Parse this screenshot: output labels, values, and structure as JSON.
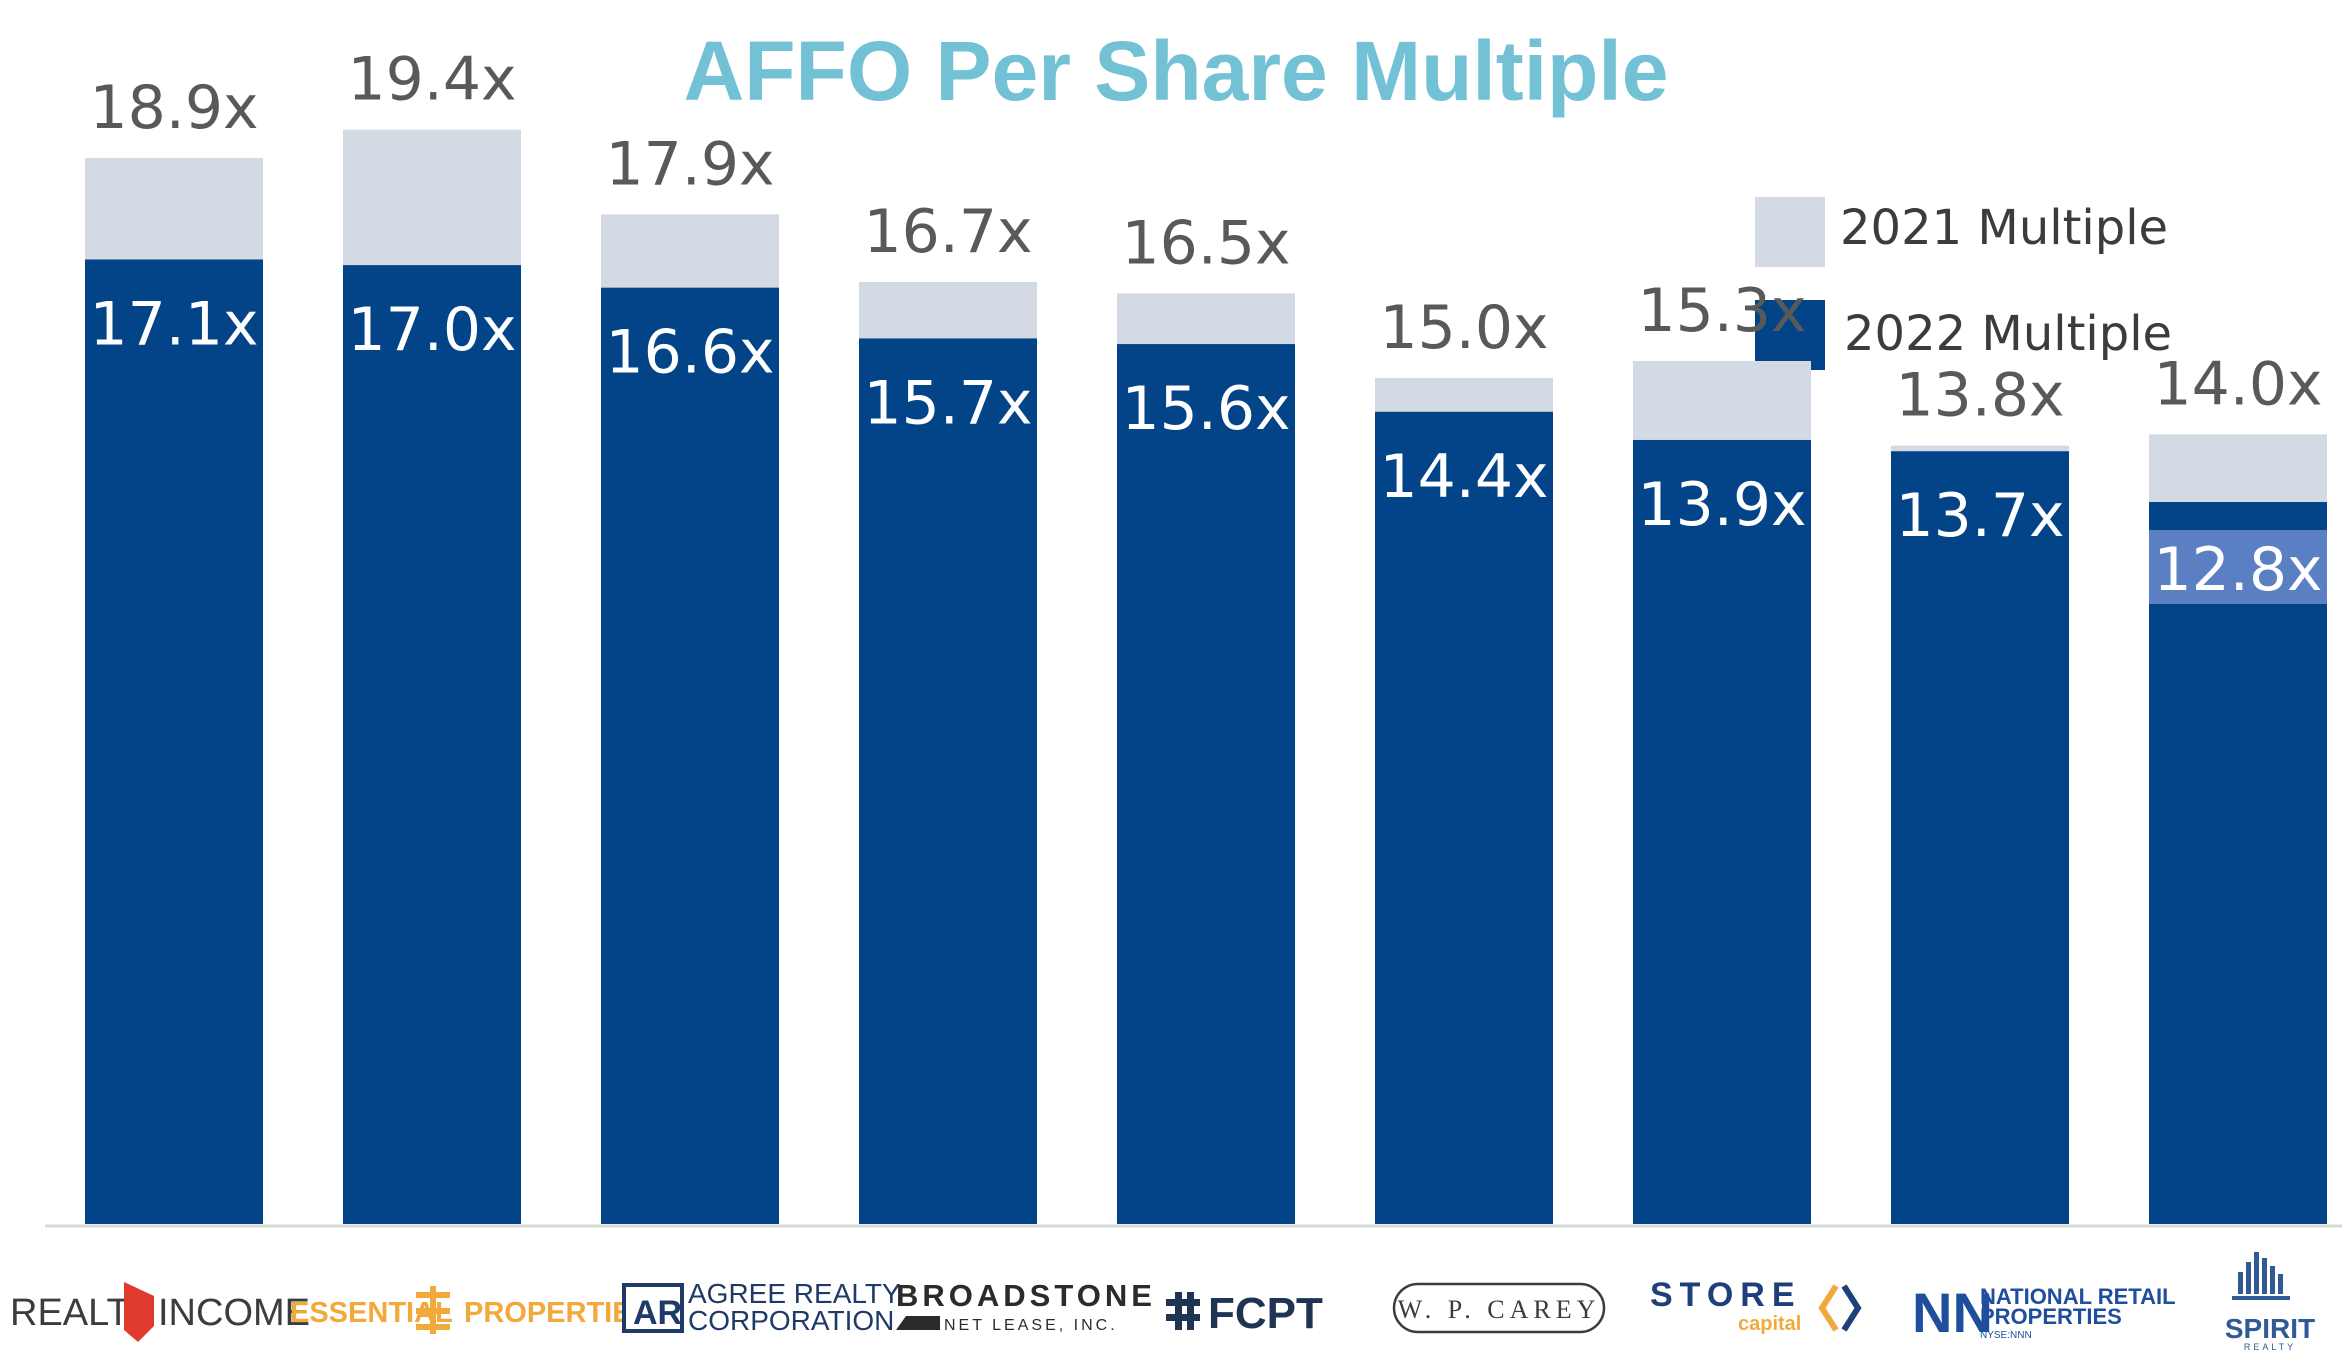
{
  "chart_data": {
    "type": "bar",
    "title": "AFFO Per Share Multiple",
    "categories": [
      "Realty Income",
      "Essential Properties",
      "Agree Realty Corporation",
      "Broadstone Net Lease",
      "FCPT",
      "W. P. Carey",
      "STORE Capital",
      "National Retail Properties",
      "Spirit Realty"
    ],
    "series": [
      {
        "name": "2021 Multiple",
        "values": [
          18.9,
          19.4,
          17.9,
          16.7,
          16.5,
          15.0,
          15.3,
          13.8,
          14.0
        ],
        "labels": [
          "18.9x",
          "19.4x",
          "17.9x",
          "16.7x",
          "16.5x",
          "15.0x",
          "15.3x",
          "13.8x",
          "14.0x"
        ]
      },
      {
        "name": "2022 Multiple",
        "values": [
          17.1,
          17.0,
          16.6,
          15.7,
          15.6,
          14.4,
          13.9,
          13.7,
          12.8
        ],
        "labels": [
          "17.1x",
          "17.0x",
          "16.6x",
          "15.7x",
          "15.6x",
          "14.4x",
          "13.9x",
          "13.7x",
          "12.8x"
        ]
      }
    ],
    "ylim": [
      0,
      21.7
    ],
    "xlabel": "",
    "ylabel": "",
    "grid": false,
    "legend": "top-right"
  },
  "logos": [
    {
      "parts": [
        "REALTY",
        "INCOME"
      ]
    },
    {
      "parts": [
        "ESSENTIAL",
        "PROPERTIES"
      ]
    },
    {
      "parts": [
        "AGREE REALTY",
        "CORPORATION"
      ]
    },
    {
      "parts": [
        "BROADSTONE",
        "NET LEASE, INC."
      ]
    },
    {
      "parts": [
        "FCPT"
      ]
    },
    {
      "parts": [
        "W. P. CAREY"
      ]
    },
    {
      "parts": [
        "STORE",
        "capital"
      ]
    },
    {
      "parts": [
        "NATIONAL RETAIL",
        "PROPERTIES",
        "NYSE:NNN"
      ]
    },
    {
      "parts": [
        "SPIRIT",
        "REALTY"
      ]
    }
  ],
  "colors": {
    "title": "#72C1D4",
    "bar2021": "#D4DAE4",
    "bar2022": "#034488",
    "highlight": "#5A80C3",
    "label2021": "#595959",
    "label2022": "#ffffff",
    "axis": "#D9D9D9",
    "essential": "#F2A93B",
    "realtyRed": "#E03A2E",
    "darkGrey": "#3C3C3C"
  }
}
